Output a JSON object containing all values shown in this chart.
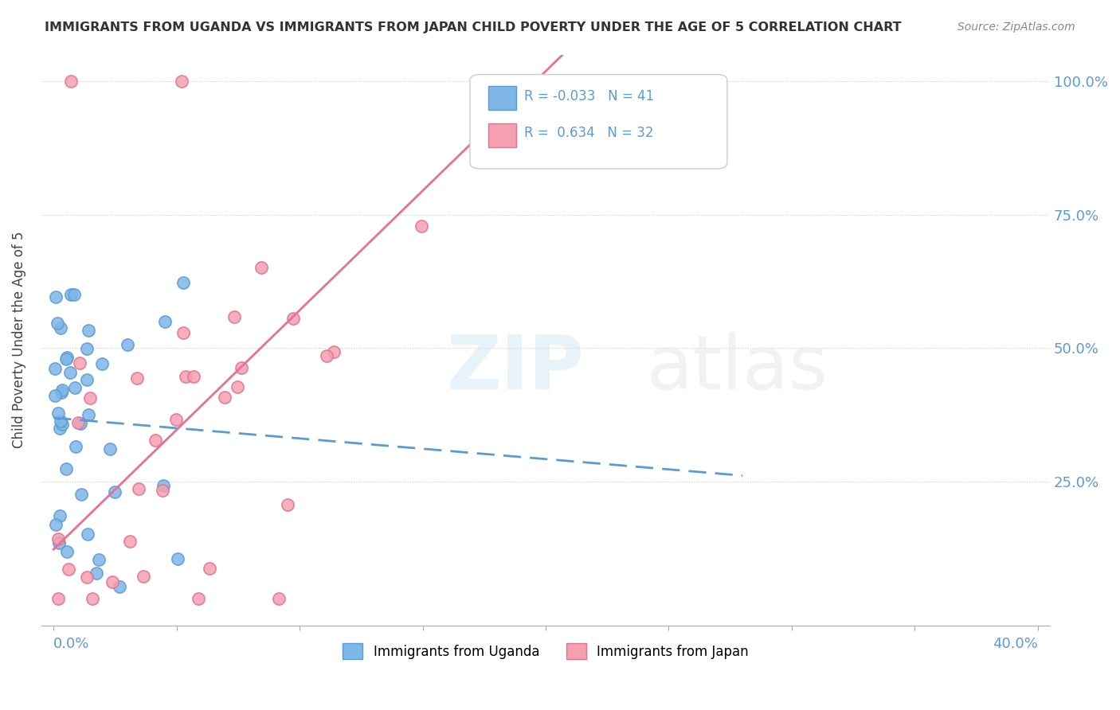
{
  "title": "IMMIGRANTS FROM UGANDA VS IMMIGRANTS FROM JAPAN CHILD POVERTY UNDER THE AGE OF 5 CORRELATION CHART",
  "source": "Source: ZipAtlas.com",
  "ylabel": "Child Poverty Under the Age of 5",
  "legend_label1": "Immigrants from Uganda",
  "legend_label2": "Immigrants from Japan",
  "R1": -0.033,
  "N1": 41,
  "R2": 0.634,
  "N2": 32,
  "color_uganda": "#7EB6E8",
  "color_japan": "#F4A0B0",
  "trend_color_uganda": "#5B9BD5",
  "trend_color_japan": "#E87090",
  "background_color": "#FFFFFF",
  "plot_background": "#FFFFFF"
}
